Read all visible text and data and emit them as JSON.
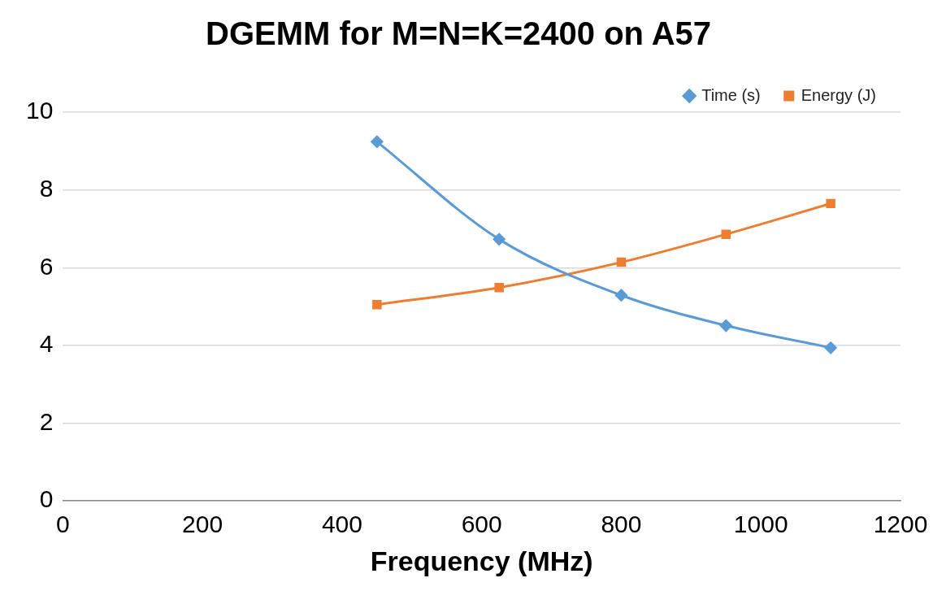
{
  "chart_data": {
    "type": "line",
    "title": "DGEMM for M=N=K=2400 on A57",
    "xlabel": "Frequency (MHz)",
    "x": [
      450,
      625,
      800,
      950,
      1100
    ],
    "series": [
      {
        "name": "Time (s)",
        "color": "#5b9bd5",
        "marker": "diamond",
        "values": [
          9.24,
          6.73,
          5.29,
          4.51,
          3.94
        ]
      },
      {
        "name": "Energy (J)",
        "color": "#ed7d31",
        "marker": "square",
        "values": [
          5.05,
          5.49,
          6.14,
          6.86,
          7.65
        ]
      }
    ],
    "xlim": [
      0,
      1200
    ],
    "xticks": [
      0,
      200,
      400,
      600,
      800,
      1000,
      1200
    ],
    "ylim": [
      0,
      10
    ],
    "yticks": [
      0,
      2,
      4,
      6,
      8,
      10
    ],
    "grid": "y",
    "legend": "top right"
  }
}
